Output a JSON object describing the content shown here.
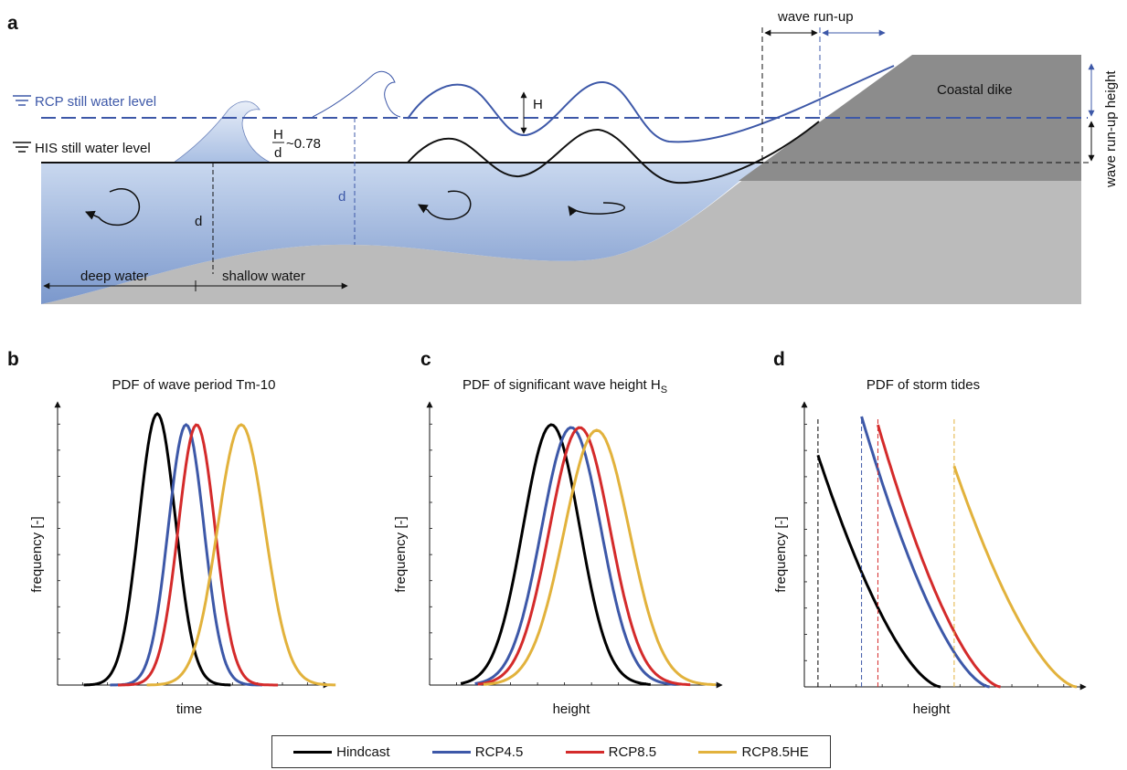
{
  "panels": {
    "a": "a",
    "b": "b",
    "c": "c",
    "d": "d"
  },
  "schematic": {
    "rcp_level": "RCP still water level",
    "his_level": "HIS still water level",
    "breaker_ratio": "~0.78",
    "breaker_num": "H",
    "breaker_den": "d",
    "wave_height": "H",
    "depth": "d",
    "depth_rcp": "d",
    "deep_water": "deep water",
    "shallow_water": "shallow water",
    "wave_run_up": "wave run-up",
    "wave_run_up_height": "wave run-up height",
    "coastal_dike": "Coastal dike"
  },
  "colors": {
    "hindcast": "#000000",
    "rcp45": "#3d58a8",
    "rcp85": "#d42b2b",
    "rcp85he": "#e2b23c"
  },
  "chart_data": [
    {
      "type": "line",
      "title": "PDF of wave period Tm-10",
      "xlabel": "time",
      "ylabel": "frequency [-]",
      "series": [
        {
          "name": "Hindcast",
          "mean": 0.38,
          "sd": 0.07,
          "peak": 0.99,
          "range": [
            0.1,
            0.66
          ]
        },
        {
          "name": "RCP4.5",
          "mean": 0.49,
          "sd": 0.068,
          "peak": 0.95,
          "range": [
            0.2,
            0.78
          ]
        },
        {
          "name": "RCP8.5",
          "mean": 0.53,
          "sd": 0.07,
          "peak": 0.95,
          "range": [
            0.23,
            0.84
          ]
        },
        {
          "name": "RCP8.5HE",
          "mean": 0.7,
          "sd": 0.09,
          "peak": 0.95,
          "range": [
            0.34,
            1.06
          ]
        }
      ]
    },
    {
      "type": "line",
      "title": "PDF of significant wave height H",
      "title_sub": "S",
      "xlabel": "height",
      "ylabel": "frequency [-]",
      "series": [
        {
          "name": "Hindcast",
          "mean": 0.43,
          "sd": 0.1,
          "peak": 0.95,
          "range": [
            0.11,
            0.78
          ]
        },
        {
          "name": "RCP4.5",
          "mean": 0.5,
          "sd": 0.105,
          "peak": 0.94,
          "range": [
            0.16,
            0.87
          ]
        },
        {
          "name": "RCP8.5",
          "mean": 0.53,
          "sd": 0.107,
          "peak": 0.94,
          "range": [
            0.17,
            0.92
          ]
        },
        {
          "name": "RCP8.5HE",
          "mean": 0.59,
          "sd": 0.115,
          "peak": 0.93,
          "range": [
            0.19,
            1.01
          ]
        }
      ]
    },
    {
      "type": "line",
      "title": "PDF of storm tides",
      "xlabel": "height",
      "ylabel": "frequency [-]",
      "series": [
        {
          "name": "Hindcast",
          "start": 0.05,
          "end": 0.5,
          "y0": 0.84,
          "y1": 0.0
        },
        {
          "name": "RCP4.5",
          "start": 0.21,
          "end": 0.68,
          "y0": 0.98,
          "y1": 0.0
        },
        {
          "name": "RCP8.5",
          "start": 0.27,
          "end": 0.72,
          "y0": 0.95,
          "y1": 0.0
        },
        {
          "name": "RCP8.5HE",
          "start": 0.55,
          "end": 1.0,
          "y0": 0.8,
          "y1": 0.0
        }
      ]
    }
  ],
  "legend": [
    "Hindcast",
    "RCP4.5",
    "RCP8.5",
    "RCP8.5HE"
  ]
}
